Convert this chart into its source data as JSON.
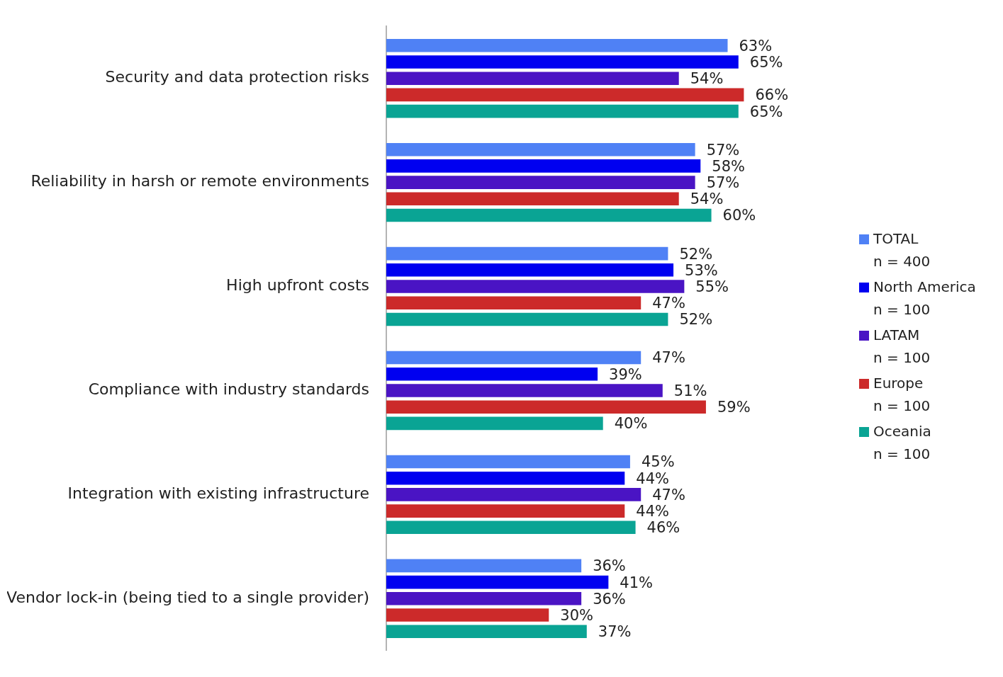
{
  "chart_data": {
    "type": "bar",
    "orientation": "horizontal",
    "categories": [
      "Security and data protection risks",
      "Reliability in harsh or remote environments",
      "High upfront costs",
      "Compliance with industry standards",
      "Integration with existing infrastructure",
      "Vendor lock-in (being tied to a single provider)"
    ],
    "tick_labels": "y",
    "legend": "right",
    "series": [
      {
        "name": "TOTAL\nn = 400",
        "color": "#4f81f5",
        "values": [
          63,
          57,
          52,
          47,
          45,
          36
        ],
        "value_labels": [
          "63%",
          "57%",
          "52%",
          "47%",
          "45%",
          "36%"
        ]
      },
      {
        "name": "North America\nn = 100",
        "color": "#0000f0",
        "values": [
          65,
          58,
          53,
          39,
          44,
          41
        ],
        "value_labels": [
          "65%",
          "58%",
          "53%",
          "39%",
          "44%",
          "41%"
        ]
      },
      {
        "name": "LATAM\nn = 100",
        "color": "#4a14c4",
        "values": [
          54,
          57,
          55,
          51,
          47,
          36
        ],
        "value_labels": [
          "54%",
          "57%",
          "55%",
          "51%",
          "47%",
          "36%"
        ]
      },
      {
        "name": "Europe\nn = 100",
        "color": "#cc2a2a",
        "values": [
          66,
          54,
          47,
          59,
          44,
          30
        ],
        "value_labels": [
          "66%",
          "54%",
          "47%",
          "59%",
          "44%",
          "30%"
        ]
      },
      {
        "name": "Oceania\nn = 100",
        "color": "#0aa494",
        "values": [
          65,
          60,
          52,
          40,
          46,
          37
        ],
        "value_labels": [
          "65%",
          "60%",
          "52%",
          "40%",
          "46%",
          "37%"
        ]
      }
    ]
  }
}
